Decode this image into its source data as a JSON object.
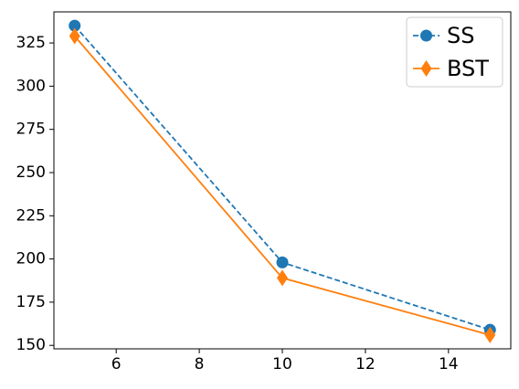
{
  "chart_data": {
    "type": "line",
    "title": "",
    "xlabel": "",
    "ylabel": "",
    "xlim": [
      4.5,
      15.5
    ],
    "ylim": [
      148,
      343
    ],
    "xticks": [
      6,
      8,
      10,
      12,
      14
    ],
    "xtick_labels": [
      "6",
      "8",
      "10",
      "12",
      "14"
    ],
    "yticks": [
      150,
      175,
      200,
      225,
      250,
      275,
      300,
      325
    ],
    "ytick_labels": [
      "150",
      "175",
      "200",
      "225",
      "250",
      "275",
      "300",
      "325"
    ],
    "grid": false,
    "legend_position": "top-right",
    "series": [
      {
        "name": "SS",
        "x": [
          5,
          10,
          15
        ],
        "y": [
          335,
          198,
          159
        ],
        "color": "#1f77b4",
        "line_style": "dashed",
        "marker": "circle"
      },
      {
        "name": "BST",
        "x": [
          5,
          10,
          15
        ],
        "y": [
          329,
          189,
          156
        ],
        "color": "#ff7f0e",
        "line_style": "solid",
        "marker": "diamond"
      }
    ]
  }
}
